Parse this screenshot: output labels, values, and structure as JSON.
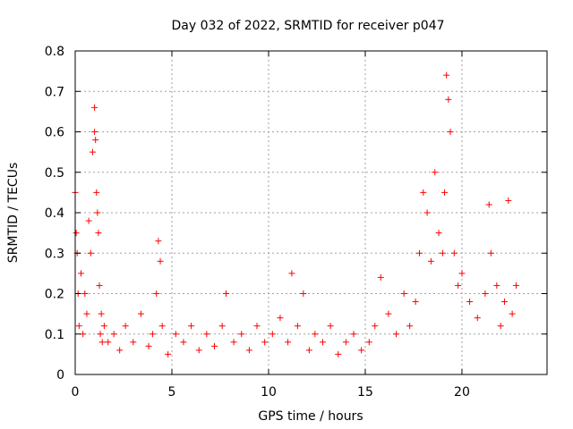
{
  "chart_data": {
    "type": "scatter",
    "title": "Day 032 of 2022, SRMTID for receiver p047",
    "xlabel": "GPS time / hours",
    "ylabel": "SRMTID / TECUs",
    "xlim": [
      0,
      24.4
    ],
    "ylim": [
      0,
      0.8
    ],
    "x_ticks": [
      0,
      5,
      10,
      15,
      20
    ],
    "y_ticks": [
      0,
      0.1,
      0.2,
      0.3,
      0.4,
      0.5,
      0.6,
      0.7,
      0.8
    ],
    "x_tick_labels": [
      "0",
      "5",
      "10",
      "15",
      "20"
    ],
    "y_tick_labels": [
      "0",
      "0.1",
      "0.2",
      "0.3",
      "0.4",
      "0.5",
      "0.6",
      "0.7",
      "0.8"
    ],
    "grid": true,
    "marker": "+",
    "color": "#ff0000",
    "series": [
      {
        "name": "SRMTID",
        "x": [
          0.0,
          0.05,
          0.1,
          0.15,
          0.2,
          0.3,
          0.4,
          0.5,
          0.6,
          0.7,
          0.8,
          0.9,
          1.0,
          1.0,
          1.05,
          1.1,
          1.15,
          1.2,
          1.25,
          1.3,
          1.35,
          1.4,
          1.5,
          1.7,
          2.0,
          2.3,
          2.6,
          3.0,
          3.4,
          3.8,
          4.0,
          4.2,
          4.3,
          4.4,
          4.5,
          4.8,
          5.2,
          5.6,
          6.0,
          6.4,
          6.8,
          7.2,
          7.6,
          7.8,
          8.2,
          8.6,
          9.0,
          9.4,
          9.8,
          10.2,
          10.6,
          11.0,
          11.2,
          11.5,
          11.8,
          12.1,
          12.4,
          12.8,
          13.2,
          13.6,
          14.0,
          14.4,
          14.8,
          15.2,
          15.5,
          15.8,
          16.2,
          16.6,
          17.0,
          17.3,
          17.6,
          17.8,
          18.0,
          18.2,
          18.4,
          18.6,
          18.8,
          19.0,
          19.1,
          19.2,
          19.3,
          19.4,
          19.6,
          19.8,
          20.0,
          20.4,
          20.8,
          21.2,
          21.4,
          21.5,
          21.8,
          22.0,
          22.2,
          22.4,
          22.6,
          22.8
        ],
        "y": [
          0.45,
          0.35,
          0.3,
          0.2,
          0.12,
          0.25,
          0.1,
          0.2,
          0.15,
          0.38,
          0.3,
          0.55,
          0.66,
          0.6,
          0.58,
          0.45,
          0.4,
          0.35,
          0.22,
          0.1,
          0.15,
          0.08,
          0.12,
          0.08,
          0.1,
          0.06,
          0.12,
          0.08,
          0.15,
          0.07,
          0.1,
          0.2,
          0.33,
          0.28,
          0.12,
          0.05,
          0.1,
          0.08,
          0.12,
          0.06,
          0.1,
          0.07,
          0.12,
          0.2,
          0.08,
          0.1,
          0.06,
          0.12,
          0.08,
          0.1,
          0.14,
          0.08,
          0.25,
          0.12,
          0.2,
          0.06,
          0.1,
          0.08,
          0.12,
          0.05,
          0.08,
          0.1,
          0.06,
          0.08,
          0.12,
          0.24,
          0.15,
          0.1,
          0.2,
          0.12,
          0.18,
          0.3,
          0.45,
          0.4,
          0.28,
          0.5,
          0.35,
          0.3,
          0.45,
          0.74,
          0.68,
          0.6,
          0.3,
          0.22,
          0.25,
          0.18,
          0.14,
          0.2,
          0.42,
          0.3,
          0.22,
          0.12,
          0.18,
          0.43,
          0.15,
          0.22
        ]
      }
    ]
  }
}
